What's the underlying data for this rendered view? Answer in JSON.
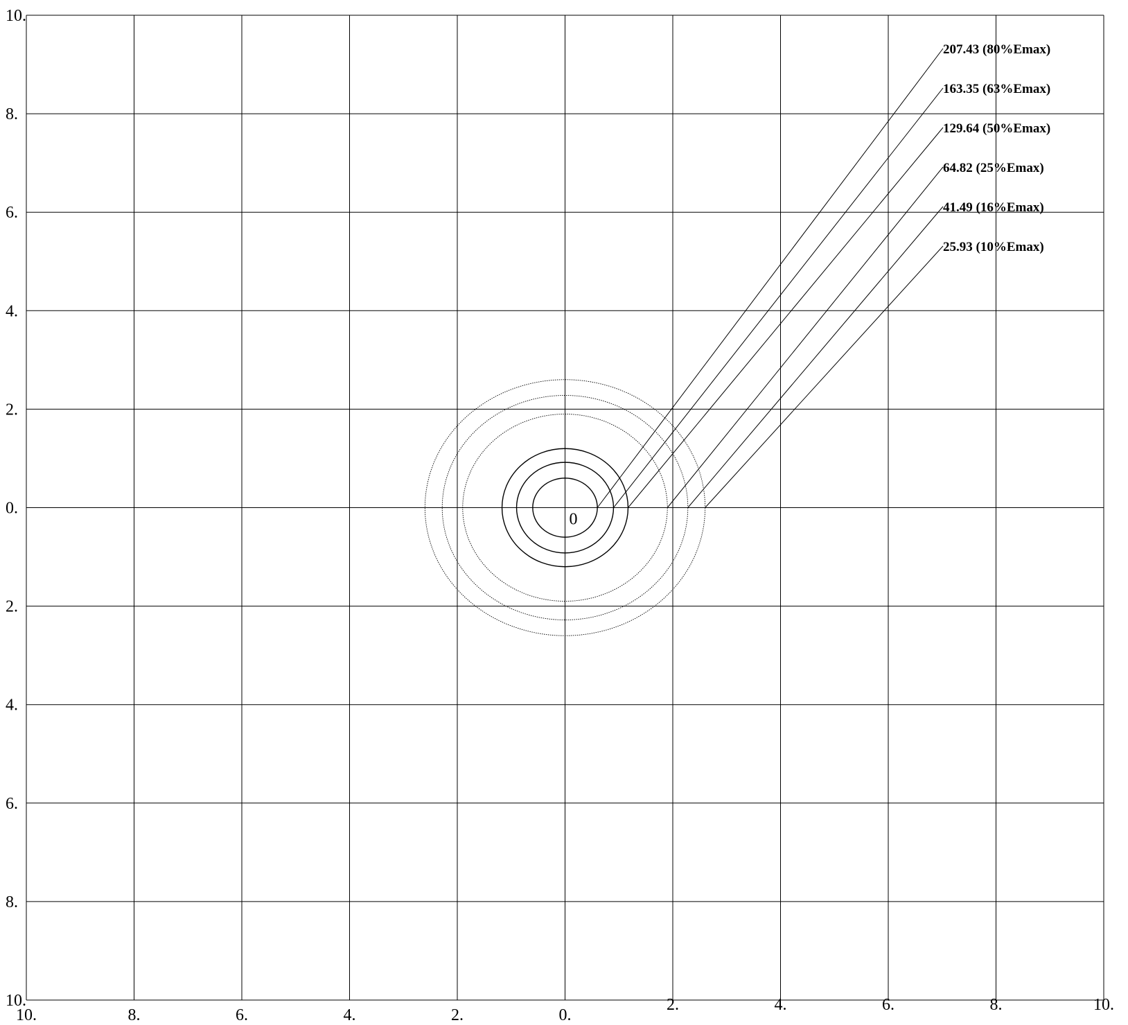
{
  "chart_data": {
    "type": "contour",
    "x_ticks": [
      "10.",
      "8.",
      "6.",
      "4.",
      "2.",
      "0.",
      "2.",
      "4.",
      "6.",
      "8.",
      "10."
    ],
    "x_tick_values": [
      -10,
      -8,
      -6,
      -4,
      -2,
      0,
      2,
      4,
      6,
      8,
      10
    ],
    "y_ticks": [
      "10.",
      "8.",
      "6.",
      "4.",
      "2.",
      "0.",
      "2.",
      "4.",
      "6.",
      "8.",
      "10."
    ],
    "y_tick_values": [
      10,
      8,
      6,
      4,
      2,
      0,
      -2,
      -4,
      -6,
      -8,
      -10
    ],
    "xlim": [
      -10,
      10
    ],
    "ylim": [
      -10,
      10
    ],
    "grid": true,
    "origin_label": "0",
    "levels": [
      {
        "label": "207.43  (80%Emax)",
        "value": 207.43,
        "percent": 80,
        "rx": 0.6,
        "ry": 0.6,
        "style": "solid"
      },
      {
        "label": "163.35  (63%Emax)",
        "value": 163.35,
        "percent": 63,
        "rx": 0.9,
        "ry": 0.92,
        "style": "solid"
      },
      {
        "label": "129.64  (50%Emax)",
        "value": 129.64,
        "percent": 50,
        "rx": 1.17,
        "ry": 1.2,
        "style": "solid"
      },
      {
        "label": "64.82  (25%Emax)",
        "value": 64.82,
        "percent": 25,
        "rx": 1.9,
        "ry": 1.9,
        "style": "dotted"
      },
      {
        "label": "41.49  (16%Emax)",
        "value": 41.49,
        "percent": 16,
        "rx": 2.28,
        "ry": 2.28,
        "style": "dotted"
      },
      {
        "label": "25.93  (10%Emax)",
        "value": 25.93,
        "percent": 10,
        "rx": 2.6,
        "ry": 2.6,
        "style": "dotted"
      }
    ],
    "colors": {
      "line": "#000000",
      "background": "#ffffff"
    }
  }
}
